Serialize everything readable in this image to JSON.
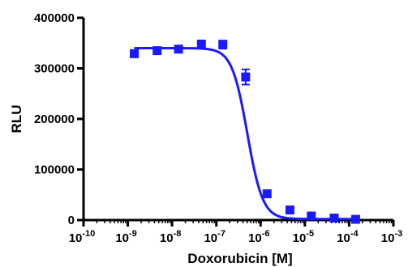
{
  "chart_data": {
    "type": "scatter",
    "xscale": "log",
    "xlabel": "Doxorubicin [M]",
    "ylabel": "RLU",
    "xlim": [
      1e-10,
      0.001
    ],
    "ylim": [
      0,
      400000
    ],
    "x_ticks": [
      {
        "value": 1e-10,
        "base": "10",
        "exp": "-10"
      },
      {
        "value": 1e-09,
        "base": "10",
        "exp": "-9"
      },
      {
        "value": 1e-08,
        "base": "10",
        "exp": "-8"
      },
      {
        "value": 1e-07,
        "base": "10",
        "exp": "-7"
      },
      {
        "value": 1e-06,
        "base": "10",
        "exp": "-6"
      },
      {
        "value": 1e-05,
        "base": "10",
        "exp": "-5"
      },
      {
        "value": 0.0001,
        "base": "10",
        "exp": "-4"
      },
      {
        "value": 0.001,
        "base": "10",
        "exp": "-3"
      }
    ],
    "y_ticks": [
      {
        "value": 0,
        "label": "0"
      },
      {
        "value": 100000,
        "label": "100000"
      },
      {
        "value": 200000,
        "label": "200000"
      },
      {
        "value": 300000,
        "label": "300000"
      },
      {
        "value": 400000,
        "label": "400000"
      }
    ],
    "color": "#1a1aff",
    "points": [
      {
        "x": 1.4e-09,
        "y": 329000,
        "err": 5000
      },
      {
        "x": 4.6e-09,
        "y": 335000,
        "err": 4000
      },
      {
        "x": 1.4e-08,
        "y": 338000,
        "err": 4000
      },
      {
        "x": 4.6e-08,
        "y": 348000,
        "err": 5000
      },
      {
        "x": 1.4e-07,
        "y": 347000,
        "err": 8000
      },
      {
        "x": 4.6e-07,
        "y": 283000,
        "err": 15000
      },
      {
        "x": 1.4e-06,
        "y": 52000,
        "err": 4000
      },
      {
        "x": 4.6e-06,
        "y": 20000,
        "err": 3000
      },
      {
        "x": 1.4e-05,
        "y": 8000,
        "err": 2000
      },
      {
        "x": 4.6e-05,
        "y": 4000,
        "err": 1500
      },
      {
        "x": 0.00014,
        "y": 1500,
        "err": 1000
      }
    ],
    "fit": {
      "model": "four-parameter logistic",
      "top": 340000,
      "bottom": 2000,
      "log_ic50": -6.3,
      "hill_slope": -2.5
    }
  }
}
